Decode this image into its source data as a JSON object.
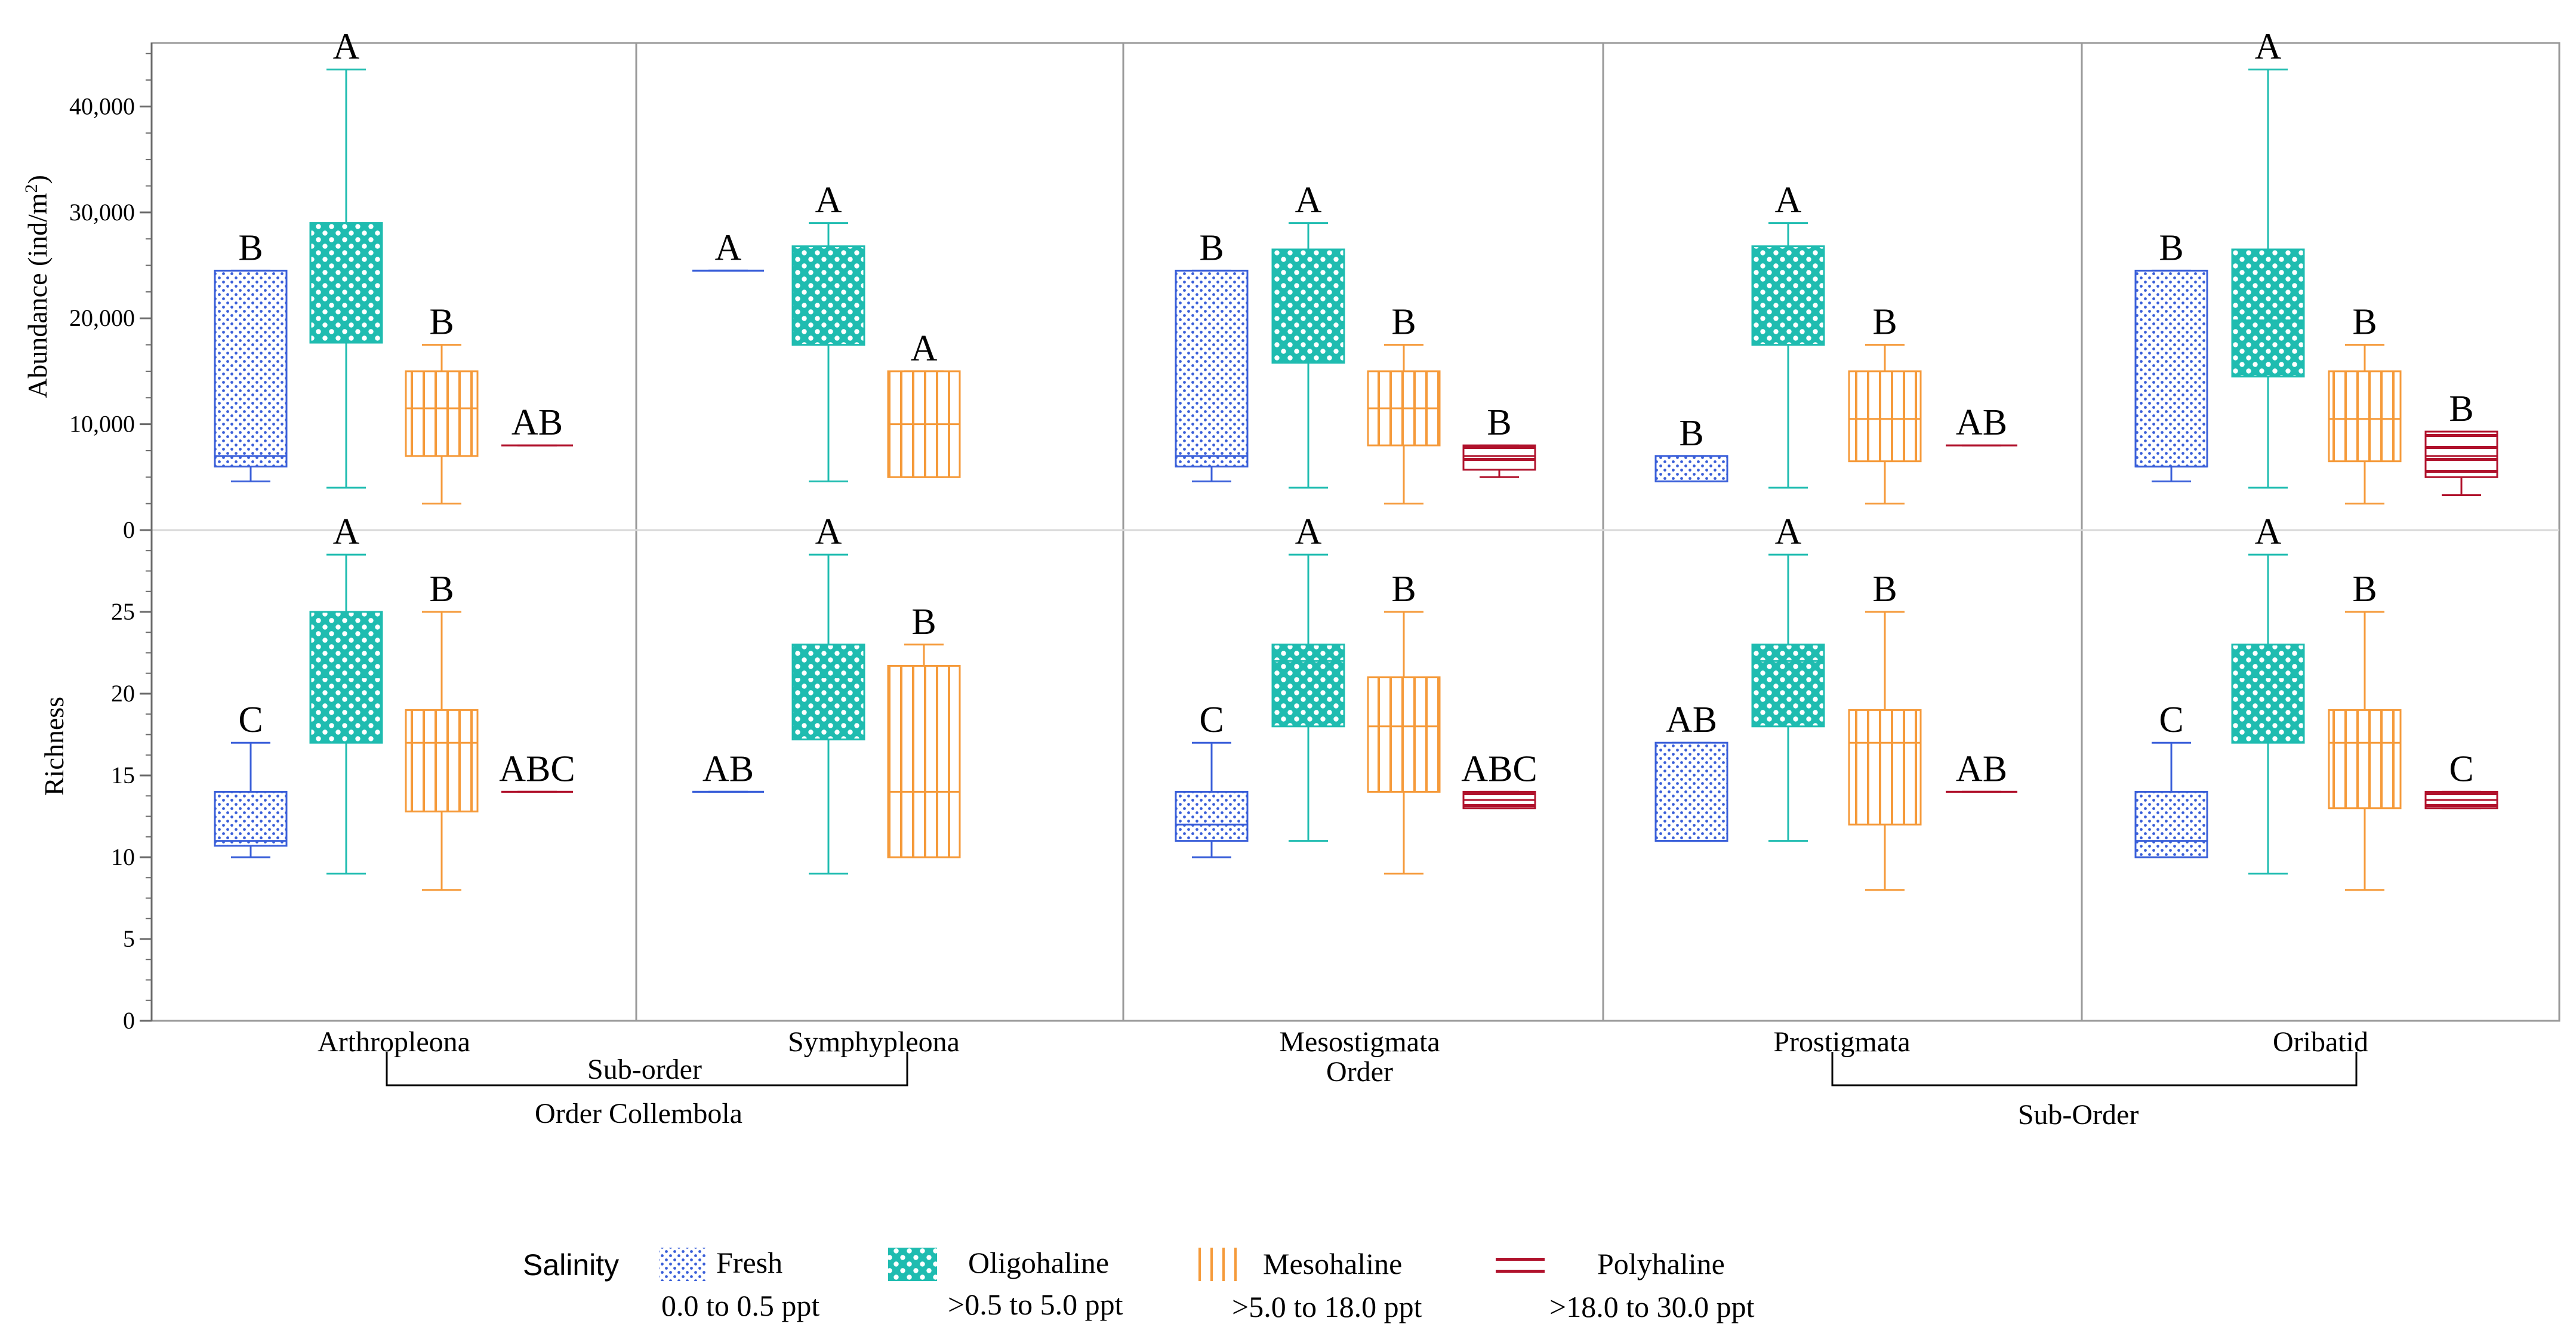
{
  "chart_data": {
    "type": "boxplot",
    "colors": {
      "fresh": "#3a5fd9",
      "oligo": "#1fbcb0",
      "meso": "#f59a3a",
      "poly": "#b0122c"
    },
    "categories": [
      "Arthropleona",
      "Symphypleona",
      "Mesostigmata",
      "Prostigmata",
      "Oribatid"
    ],
    "abundance_axis": {
      "title": "Abundance (ind/m",
      "sup": "2",
      "close": ")",
      "ylim": [
        0,
        46000
      ],
      "ticks": [
        0,
        10000,
        20000,
        30000,
        40000
      ],
      "tick_labels": [
        "0",
        "10,000",
        "20,000",
        "30,000",
        "40,000"
      ]
    },
    "richness_axis": {
      "title": "Richness",
      "ylim": [
        0,
        30
      ],
      "ticks": [
        0,
        5,
        10,
        15,
        20,
        25
      ],
      "tick_labels": [
        "0",
        "5",
        "10",
        "15",
        "20",
        "25"
      ]
    },
    "groups": [
      {
        "label": "Sub-order",
        "sub": "Order Collembola"
      },
      {
        "label": "Order"
      },
      {
        "label": "Sub-Order"
      }
    ],
    "legend": {
      "title": "Salinity",
      "entries": [
        {
          "key": "fresh",
          "name": "Fresh",
          "range": "0.0 to 0.5 ppt"
        },
        {
          "key": "oligo",
          "name": "Oligohaline",
          "range": ">0.5 to 5.0 ppt"
        },
        {
          "key": "meso",
          "name": "Mesohaline",
          "range": ">5.0 to 18.0 ppt"
        },
        {
          "key": "poly",
          "name": "Polyhaline",
          "range": ">18.0 to 30.0 ppt"
        }
      ]
    },
    "abundance": [
      [
        {
          "key": "fresh",
          "whislo": 4600,
          "q1": 6000,
          "med": 7000,
          "q3": 24500,
          "whishi": 24500,
          "letter": "B"
        },
        {
          "key": "oligo",
          "whislo": 4000,
          "q1": 17700,
          "med": 20300,
          "q3": 29000,
          "whishi": 43500,
          "letter": "A"
        },
        {
          "key": "meso",
          "whislo": 2500,
          "q1": 7000,
          "med": 11500,
          "q3": 15000,
          "whishi": 17500,
          "letter": "B"
        },
        {
          "key": "poly",
          "whislo": 8000,
          "q1": 8000,
          "med": 8000,
          "q3": 8000,
          "whishi": 8000,
          "letter": "AB"
        }
      ],
      [
        {
          "key": "fresh",
          "whislo": 24500,
          "q1": 24500,
          "med": 24500,
          "q3": 24500,
          "whishi": 24500,
          "letter": "A"
        },
        {
          "key": "oligo",
          "whislo": 4600,
          "q1": 17500,
          "med": 20300,
          "q3": 26800,
          "whishi": 29000,
          "letter": "A"
        },
        {
          "key": "meso",
          "whislo": 5000,
          "q1": 5000,
          "med": 10000,
          "q3": 15000,
          "whishi": 15000,
          "letter": "A"
        }
      ],
      [
        {
          "key": "fresh",
          "whislo": 4600,
          "q1": 6000,
          "med": 7000,
          "q3": 24500,
          "whishi": 24500,
          "letter": "B"
        },
        {
          "key": "oligo",
          "whislo": 4000,
          "q1": 15800,
          "med": 20300,
          "q3": 26500,
          "whishi": 29000,
          "letter": "A"
        },
        {
          "key": "meso",
          "whislo": 2500,
          "q1": 8000,
          "med": 11500,
          "q3": 15000,
          "whishi": 17500,
          "letter": "B"
        },
        {
          "key": "poly",
          "whislo": 5000,
          "q1": 5700,
          "med": 7000,
          "q3": 8000,
          "whishi": 8000,
          "letter": "B"
        }
      ],
      [
        {
          "key": "fresh",
          "whislo": 4600,
          "q1": 4600,
          "med": 4600,
          "q3": 7000,
          "whishi": 7000,
          "letter": "B"
        },
        {
          "key": "oligo",
          "whislo": 4000,
          "q1": 17500,
          "med": 20300,
          "q3": 26800,
          "whishi": 29000,
          "letter": "A"
        },
        {
          "key": "meso",
          "whislo": 2500,
          "q1": 6500,
          "med": 10500,
          "q3": 15000,
          "whishi": 17500,
          "letter": "B"
        },
        {
          "key": "poly",
          "whislo": 8000,
          "q1": 8000,
          "med": 8000,
          "q3": 8000,
          "whishi": 8000,
          "letter": "AB"
        }
      ],
      [
        {
          "key": "fresh",
          "whislo": 4600,
          "q1": 6000,
          "med": 6000,
          "q3": 24500,
          "whishi": 24500,
          "letter": "B"
        },
        {
          "key": "oligo",
          "whislo": 4000,
          "q1": 14500,
          "med": 19800,
          "q3": 26500,
          "whishi": 43500,
          "letter": "A"
        },
        {
          "key": "meso",
          "whislo": 2500,
          "q1": 6500,
          "med": 10500,
          "q3": 15000,
          "whishi": 17500,
          "letter": "B"
        },
        {
          "key": "poly",
          "whislo": 3300,
          "q1": 5000,
          "med": 7000,
          "q3": 9300,
          "whishi": 9300,
          "letter": "B"
        }
      ]
    ],
    "richness": [
      [
        {
          "key": "fresh",
          "whislo": 10,
          "q1": 10.7,
          "med": 11,
          "q3": 14,
          "whishi": 17,
          "letter": "C"
        },
        {
          "key": "oligo",
          "whislo": 9,
          "q1": 17,
          "med": 21,
          "q3": 25,
          "whishi": 28.5,
          "letter": "A"
        },
        {
          "key": "meso",
          "whislo": 8,
          "q1": 12.8,
          "med": 17,
          "q3": 19,
          "whishi": 25,
          "letter": "B"
        },
        {
          "key": "poly",
          "whislo": 14,
          "q1": 14,
          "med": 14,
          "q3": 14,
          "whishi": 14,
          "letter": "ABC"
        }
      ],
      [
        {
          "key": "fresh",
          "whislo": 14,
          "q1": 14,
          "med": 14,
          "q3": 14,
          "whishi": 14,
          "letter": "AB"
        },
        {
          "key": "oligo",
          "whislo": 9,
          "q1": 17.2,
          "med": 21,
          "q3": 23,
          "whishi": 28.5,
          "letter": "A"
        },
        {
          "key": "meso",
          "whislo": 10,
          "q1": 10,
          "med": 14,
          "q3": 21.7,
          "whishi": 23,
          "letter": "B"
        }
      ],
      [
        {
          "key": "fresh",
          "whislo": 10,
          "q1": 11,
          "med": 12,
          "q3": 14,
          "whishi": 17,
          "letter": "C"
        },
        {
          "key": "oligo",
          "whislo": 11,
          "q1": 18,
          "med": 22,
          "q3": 23,
          "whishi": 28.5,
          "letter": "A"
        },
        {
          "key": "meso",
          "whislo": 9,
          "q1": 14,
          "med": 18,
          "q3": 21,
          "whishi": 25,
          "letter": "B"
        },
        {
          "key": "poly",
          "whislo": 13,
          "q1": 13,
          "med": 13.5,
          "q3": 14,
          "whishi": 14,
          "letter": "ABC"
        }
      ],
      [
        {
          "key": "fresh",
          "whislo": 11,
          "q1": 11,
          "med": 11,
          "q3": 17,
          "whishi": 17,
          "letter": "AB"
        },
        {
          "key": "oligo",
          "whislo": 11,
          "q1": 18,
          "med": 22,
          "q3": 23,
          "whishi": 28.5,
          "letter": "A"
        },
        {
          "key": "meso",
          "whislo": 8,
          "q1": 12,
          "med": 17,
          "q3": 19,
          "whishi": 25,
          "letter": "B"
        },
        {
          "key": "poly",
          "whislo": 14,
          "q1": 14,
          "med": 14,
          "q3": 14,
          "whishi": 14,
          "letter": "AB"
        }
      ],
      [
        {
          "key": "fresh",
          "whislo": 10,
          "q1": 10,
          "med": 11,
          "q3": 14,
          "whishi": 17,
          "letter": "C"
        },
        {
          "key": "oligo",
          "whislo": 9,
          "q1": 17,
          "med": 21,
          "q3": 23,
          "whishi": 28.5,
          "letter": "A"
        },
        {
          "key": "meso",
          "whislo": 8,
          "q1": 13,
          "med": 17,
          "q3": 19,
          "whishi": 25,
          "letter": "B"
        },
        {
          "key": "poly",
          "whislo": 13,
          "q1": 13,
          "med": 13.5,
          "q3": 14,
          "whishi": 14,
          "letter": "C"
        }
      ]
    ]
  }
}
